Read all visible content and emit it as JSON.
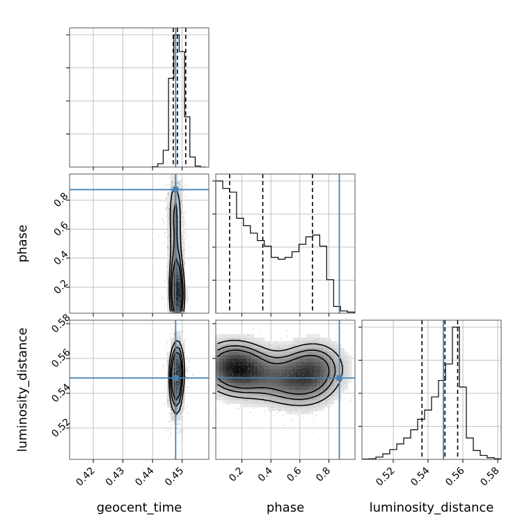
{
  "chart_data": {
    "type": "corner",
    "parameters": [
      "geocent_time",
      "phase",
      "luminosity_distance"
    ],
    "axis_labels": {
      "geocent_time": "geocent_time",
      "phase": "phase",
      "luminosity_distance": "luminosity_distance"
    },
    "ranges": {
      "geocent_time": [
        0.412,
        0.459
      ],
      "phase": [
        0.02,
        0.98
      ],
      "luminosity_distance": [
        0.502,
        0.582
      ]
    },
    "ticks": {
      "geocent_time": {
        "values": [
          0.42,
          0.43,
          0.44,
          0.45
        ],
        "labels": [
          "0.42",
          "0.43",
          "0.44",
          "0.45"
        ]
      },
      "phase": {
        "values": [
          0.2,
          0.4,
          0.6,
          0.8
        ],
        "labels": [
          "0.2",
          "0.4",
          "0.6",
          "0.8"
        ]
      },
      "luminosity_distance": {
        "values": [
          0.52,
          0.54,
          0.56,
          0.58
        ],
        "labels": [
          "0.52",
          "0.54",
          "0.56",
          "0.58"
        ]
      }
    },
    "truths": {
      "geocent_time": 0.4478,
      "phase": 0.8722,
      "luminosity_distance": 0.5488
    },
    "quantiles": {
      "geocent_time": [
        0.447,
        0.4484,
        0.4512
      ],
      "phase": [
        0.1157,
        0.3442,
        0.687
      ],
      "luminosity_distance": [
        0.5365,
        0.5497,
        0.557
      ]
    },
    "histograms": {
      "geocent_time": {
        "edges": [
          0.44,
          0.4418,
          0.4436,
          0.4454,
          0.4472,
          0.449,
          0.4508,
          0.4526,
          0.4544,
          0.4562,
          0.458
        ],
        "counts": [
          1,
          10,
          50,
          265,
          395,
          345,
          150,
          30,
          3,
          0
        ]
      },
      "phase": {
        "edges": [
          0.02,
          0.0678,
          0.1156,
          0.1634,
          0.2112,
          0.259,
          0.3068,
          0.3546,
          0.4024,
          0.4502,
          0.498,
          0.5458,
          0.5936,
          0.6414,
          0.6892,
          0.737,
          0.7848,
          0.8326,
          0.8804,
          0.9282,
          0.976
        ],
        "counts": [
          355,
          335,
          325,
          255,
          235,
          215,
          195,
          180,
          150,
          145,
          150,
          165,
          185,
          205,
          210,
          180,
          90,
          18,
          6,
          3
        ]
      },
      "luminosity_distance": {
        "edges": [
          0.502,
          0.506,
          0.51,
          0.514,
          0.518,
          0.522,
          0.526,
          0.53,
          0.534,
          0.538,
          0.542,
          0.546,
          0.55,
          0.554,
          0.558,
          0.562,
          0.566,
          0.57,
          0.574,
          0.578,
          0.582
        ],
        "counts": [
          1,
          2,
          7,
          17,
          30,
          47,
          65,
          90,
          122,
          150,
          190,
          240,
          290,
          402,
          220,
          65,
          27,
          12,
          5,
          2
        ]
      }
    },
    "pairs": [
      {
        "x": "geocent_time",
        "y": "phase",
        "peaks": [
          [
            0.4484,
            0.12,
            1.0
          ],
          [
            0.448,
            0.22,
            0.8
          ],
          [
            0.4478,
            0.5,
            0.45
          ],
          [
            0.4476,
            0.75,
            0.55
          ]
        ],
        "sigma": [
          0.0014,
          0.14
        ],
        "contour_levels": [
          0.35,
          0.6,
          0.85
        ]
      },
      {
        "x": "phase",
        "y": "luminosity_distance",
        "peaks": [
          [
            0.12,
            0.5555,
            1.0
          ],
          [
            0.25,
            0.552,
            0.7
          ],
          [
            0.48,
            0.548,
            0.6
          ],
          [
            0.7,
            0.5555,
            0.8
          ],
          [
            0.65,
            0.545,
            0.5
          ]
        ],
        "sigma": [
          0.13,
          0.009
        ],
        "contour_levels": [
          0.35,
          0.6,
          0.85
        ]
      },
      {
        "x": "geocent_time",
        "y": "luminosity_distance",
        "peaks": [
          [
            0.4484,
            0.555,
            1.0
          ],
          [
            0.4478,
            0.548,
            0.7
          ],
          [
            0.448,
            0.538,
            0.4
          ]
        ],
        "sigma": [
          0.0014,
          0.01
        ],
        "contour_levels": [
          0.35,
          0.6,
          0.85
        ]
      }
    ],
    "colors": {
      "truth": "#4682b4",
      "line": "#000000",
      "grid": "#b0b0b0",
      "frame": "#555555"
    }
  }
}
